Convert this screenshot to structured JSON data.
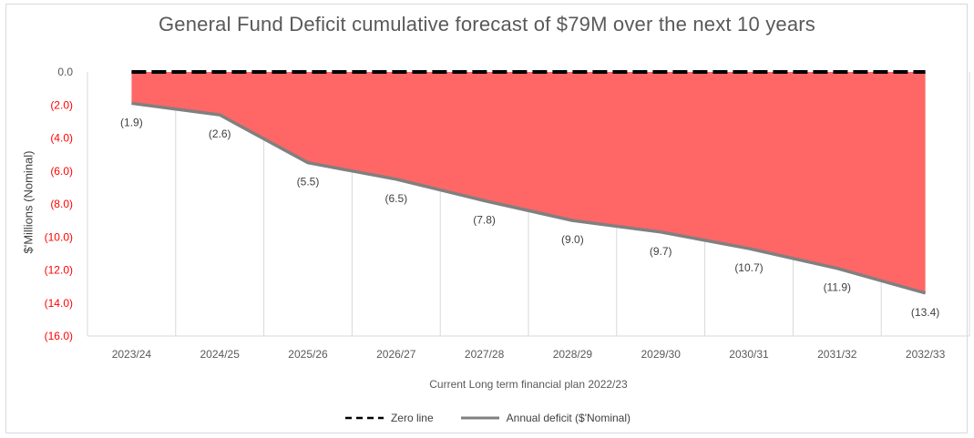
{
  "chart_data": {
    "type": "area",
    "title": "General Fund Deficit cumulative forecast of $79M over the next 10 years",
    "xlabel": "Current Long term financial plan 2022/23",
    "ylabel": "$'Millions (Nominal)",
    "categories": [
      "2023/24",
      "2024/25",
      "2025/26",
      "2026/27",
      "2027/28",
      "2028/29",
      "2029/30",
      "2030/31",
      "2031/32",
      "2032/33"
    ],
    "y_ticks": [
      "0.0",
      "(2.0)",
      "(4.0)",
      "(6.0)",
      "(8.0)",
      "(10.0)",
      "(12.0)",
      "(14.0)",
      "(16.0)"
    ],
    "ylim": [
      -16,
      0
    ],
    "grid": "vertical",
    "legend_position": "bottom",
    "series": [
      {
        "name": "Zero line",
        "values": [
          0,
          0,
          0,
          0,
          0,
          0,
          0,
          0,
          0,
          0
        ],
        "style": "dashed",
        "color": "#000000"
      },
      {
        "name": "Annual deficit ($'Nominal)",
        "values": [
          -1.9,
          -2.6,
          -5.5,
          -6.5,
          -7.8,
          -9.0,
          -9.7,
          -10.7,
          -11.9,
          -13.4
        ],
        "labels": [
          "(1.9)",
          "(2.6)",
          "(5.5)",
          "(6.5)",
          "(7.8)",
          "(9.0)",
          "(9.7)",
          "(10.7)",
          "(11.9)",
          "(13.4)"
        ],
        "style": "solid",
        "color": "#808080"
      }
    ],
    "fill_color": "#ff6666",
    "negative_tick_color": "#ff0000"
  }
}
